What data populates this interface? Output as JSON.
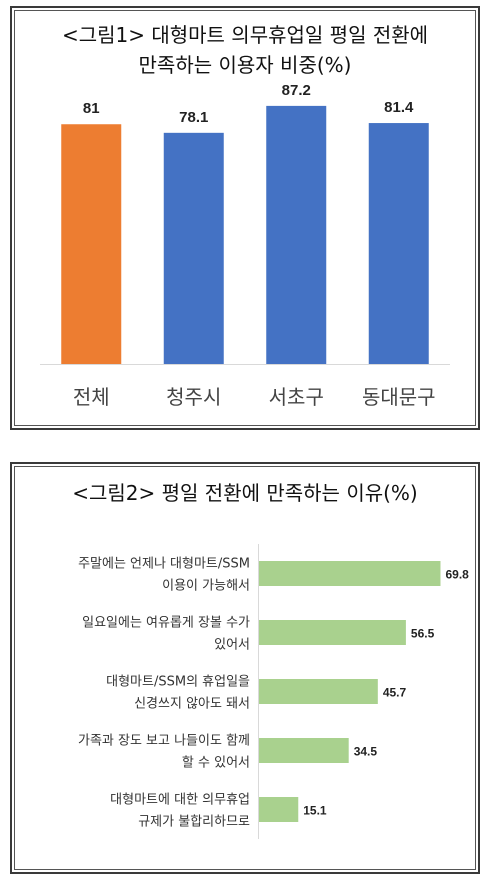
{
  "colors": {
    "highlight": "#ED7D31",
    "bar": "#4472C4",
    "hbar": "#A9D18E",
    "axis": "#D9D9D9"
  },
  "chart1": {
    "title_line1": "<그림1> 대형마트 의무휴업일 평일 전환에",
    "title_line2": "만족하는 이용자 비중(%)"
  },
  "chart2": {
    "title": "<그림2> 평일 전환에 만족하는 이유(%)"
  },
  "chart_data": [
    {
      "type": "bar",
      "title": "<그림1> 대형마트 의무휴업일 평일 전환에 만족하는 이용자 비중(%)",
      "categories": [
        "전체",
        "청주시",
        "서초구",
        "동대문구"
      ],
      "values": [
        81,
        78.1,
        87.2,
        81.4
      ],
      "value_labels": [
        "81",
        "78.1",
        "87.2",
        "81.4"
      ],
      "ylim": [
        0,
        100
      ],
      "grid": false
    },
    {
      "type": "bar",
      "orientation": "horizontal",
      "title": "<그림2> 평일 전환에 만족하는 이유(%)",
      "categories": [
        [
          "주말에는 언제나 대형마트/SSM",
          "이용이 가능해서"
        ],
        [
          "일요일에는 여유롭게 장볼 수가",
          "있어서"
        ],
        [
          "대형마트/SSM의 휴업일을",
          "신경쓰지 않아도 돼서"
        ],
        [
          "가족과 장도 보고 나들이도 함께",
          "할 수 있어서"
        ],
        [
          "대형마트에 대한 의무휴업",
          "규제가 불합리하므로"
        ]
      ],
      "values": [
        69.8,
        56.5,
        45.7,
        34.5,
        15.1
      ],
      "value_labels": [
        "69.8",
        "56.5",
        "45.7",
        "34.5",
        "15.1"
      ],
      "xlim": [
        0,
        70
      ],
      "grid": false
    }
  ]
}
